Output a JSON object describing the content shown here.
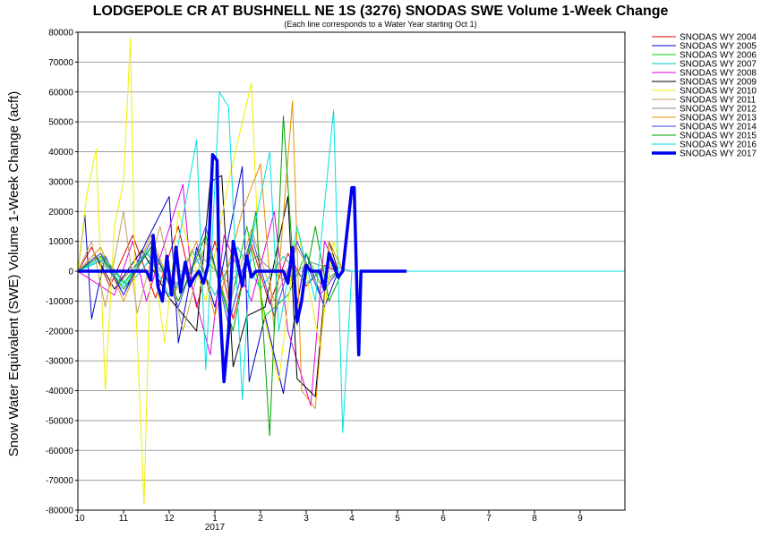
{
  "chart_data": {
    "type": "line",
    "title": "LODGEPOLE CR AT BUSHNELL NE 1S (3276) SNODAS SWE Volume 1-Week Change",
    "subtitle": "(Each line corresponds to a Water Year starting Oct 1)",
    "ylabel": "Snow Water Equivalent (SWE) Volume 1-Week Change (acft)",
    "xlabel": "",
    "x_ticks": [
      "10",
      "11",
      "12",
      "1",
      "2",
      "3",
      "4",
      "5",
      "6",
      "7",
      "8",
      "9"
    ],
    "x_year_label": "2017",
    "ylim": [
      -80000,
      80000
    ],
    "y_ticks": [
      80000,
      70000,
      60000,
      50000,
      40000,
      30000,
      20000,
      10000,
      0,
      -10000,
      -20000,
      -30000,
      -40000,
      -50000,
      -60000,
      -70000,
      -80000
    ],
    "grid": true,
    "legend_position": "right",
    "series": [
      {
        "name": "SNODAS WY 2004",
        "color": "#e00000",
        "values": [
          [
            0.0,
            0
          ],
          [
            0.3,
            8000
          ],
          [
            0.7,
            -5000
          ],
          [
            1.2,
            12000
          ],
          [
            1.7,
            -9000
          ],
          [
            2.2,
            15000
          ],
          [
            2.6,
            -12000
          ],
          [
            3.0,
            10000
          ],
          [
            3.4,
            -16000
          ],
          [
            3.8,
            9000
          ],
          [
            4.2,
            -11000
          ],
          [
            4.6,
            6000
          ],
          [
            5.0,
            -5000
          ],
          [
            5.4,
            2000
          ],
          [
            5.7,
            0
          ]
        ]
      },
      {
        "name": "SNODAS WY 2005",
        "color": "#0000cc",
        "values": [
          [
            0.0,
            0
          ],
          [
            0.15,
            19000
          ],
          [
            0.3,
            -16000
          ],
          [
            0.6,
            5000
          ],
          [
            1.0,
            -8000
          ],
          [
            1.5,
            10000
          ],
          [
            2.0,
            25000
          ],
          [
            2.2,
            -24000
          ],
          [
            2.6,
            8000
          ],
          [
            3.0,
            -12000
          ],
          [
            3.6,
            35000
          ],
          [
            3.75,
            -37000
          ],
          [
            4.1,
            -15000
          ],
          [
            4.5,
            -41000
          ],
          [
            4.7,
            -20000
          ],
          [
            5.0,
            6000
          ],
          [
            5.4,
            -12000
          ],
          [
            5.7,
            0
          ]
        ]
      },
      {
        "name": "SNODAS WY 2006",
        "color": "#00c800",
        "values": [
          [
            0.0,
            0
          ],
          [
            0.5,
            6000
          ],
          [
            1.0,
            -4000
          ],
          [
            1.6,
            8000
          ],
          [
            2.2,
            -10000
          ],
          [
            2.8,
            12000
          ],
          [
            3.3,
            -14000
          ],
          [
            3.7,
            15000
          ],
          [
            4.1,
            -15000
          ],
          [
            4.6,
            -8000
          ],
          [
            5.0,
            6000
          ],
          [
            5.3,
            -4000
          ],
          [
            5.7,
            0
          ]
        ]
      },
      {
        "name": "SNODAS WY 2007",
        "color": "#00c8c8",
        "values": [
          [
            0.0,
            0
          ],
          [
            0.6,
            4000
          ],
          [
            1.1,
            -5000
          ],
          [
            1.7,
            6000
          ],
          [
            2.1,
            -7000
          ],
          [
            2.5,
            7000
          ],
          [
            3.0,
            -8000
          ],
          [
            3.5,
            8000
          ],
          [
            4.0,
            -6000
          ],
          [
            4.5,
            5000
          ],
          [
            5.0,
            -4000
          ],
          [
            5.5,
            2000
          ],
          [
            6.0,
            0
          ]
        ]
      },
      {
        "name": "SNODAS WY 2008",
        "color": "#e000e0",
        "values": [
          [
            0.0,
            0
          ],
          [
            0.8,
            -8000
          ],
          [
            1.2,
            10000
          ],
          [
            1.5,
            -10000
          ],
          [
            2.3,
            29000
          ],
          [
            2.5,
            -5000
          ],
          [
            2.9,
            -28000
          ],
          [
            3.2,
            12000
          ],
          [
            3.8,
            -10000
          ],
          [
            4.3,
            20000
          ],
          [
            4.6,
            -20000
          ],
          [
            5.1,
            -45000
          ],
          [
            5.4,
            10000
          ],
          [
            5.7,
            0
          ]
        ]
      },
      {
        "name": "SNODAS WY 2009",
        "color": "#000000",
        "values": [
          [
            0.0,
            0
          ],
          [
            0.4,
            5000
          ],
          [
            0.8,
            -6000
          ],
          [
            1.4,
            7000
          ],
          [
            2.0,
            -9000
          ],
          [
            2.6,
            -20000
          ],
          [
            2.9,
            30000
          ],
          [
            3.15,
            32000
          ],
          [
            3.4,
            -32000
          ],
          [
            3.7,
            -15000
          ],
          [
            4.1,
            -12000
          ],
          [
            4.6,
            25000
          ],
          [
            4.8,
            -36000
          ],
          [
            5.2,
            -42000
          ],
          [
            5.5,
            10000
          ],
          [
            5.7,
            0
          ]
        ]
      },
      {
        "name": "SNODAS WY 2010",
        "color": "#f0f000",
        "values": [
          [
            0.0,
            0
          ],
          [
            0.2,
            26000
          ],
          [
            0.4,
            41000
          ],
          [
            0.6,
            -40000
          ],
          [
            0.8,
            15000
          ],
          [
            1.0,
            30000
          ],
          [
            1.15,
            78000
          ],
          [
            1.25,
            -5000
          ],
          [
            1.45,
            -78000
          ],
          [
            1.6,
            10000
          ],
          [
            1.9,
            -24000
          ],
          [
            2.2,
            20000
          ],
          [
            2.8,
            -10000
          ],
          [
            3.3,
            30000
          ],
          [
            3.8,
            63000
          ],
          [
            4.0,
            -10000
          ],
          [
            4.4,
            -37000
          ],
          [
            4.8,
            15000
          ],
          [
            5.3,
            -25000
          ],
          [
            5.6,
            10000
          ],
          [
            5.8,
            0
          ]
        ]
      },
      {
        "name": "SNODAS WY 2011",
        "color": "#c0a060",
        "values": [
          [
            0.0,
            0
          ],
          [
            0.3,
            10000
          ],
          [
            0.6,
            -12000
          ],
          [
            1.0,
            20000
          ],
          [
            1.3,
            -14000
          ],
          [
            1.8,
            15000
          ],
          [
            2.3,
            -20000
          ],
          [
            2.8,
            10000
          ],
          [
            3.3,
            -12000
          ],
          [
            3.8,
            14000
          ],
          [
            4.3,
            -10000
          ],
          [
            4.8,
            8000
          ],
          [
            5.3,
            -6000
          ],
          [
            5.7,
            0
          ]
        ]
      },
      {
        "name": "SNODAS WY 2012",
        "color": "#8a8a8a",
        "values": [
          [
            0.0,
            0
          ],
          [
            0.4,
            5000
          ],
          [
            0.9,
            -4000
          ],
          [
            1.5,
            6000
          ],
          [
            2.1,
            -5000
          ],
          [
            2.7,
            5000
          ],
          [
            3.3,
            -4000
          ],
          [
            3.9,
            5000
          ],
          [
            4.5,
            -3000
          ],
          [
            5.1,
            3000
          ],
          [
            5.7,
            0
          ]
        ]
      },
      {
        "name": "SNODAS WY 2013",
        "color": "#e89000",
        "values": [
          [
            0.0,
            0
          ],
          [
            0.5,
            8000
          ],
          [
            1.0,
            -10000
          ],
          [
            1.6,
            12000
          ],
          [
            2.1,
            -8000
          ],
          [
            2.6,
            10000
          ],
          [
            3.0,
            -15000
          ],
          [
            3.6,
            20000
          ],
          [
            4.0,
            36000
          ],
          [
            4.3,
            -20000
          ],
          [
            4.7,
            57000
          ],
          [
            4.9,
            -40000
          ],
          [
            5.2,
            -46000
          ],
          [
            5.5,
            10000
          ],
          [
            5.8,
            0
          ]
        ]
      },
      {
        "name": "SNODAS WY 2014",
        "color": "#4040ff",
        "values": [
          [
            0.0,
            0
          ],
          [
            0.5,
            6000
          ],
          [
            1.0,
            -8000
          ],
          [
            1.6,
            10000
          ],
          [
            2.2,
            -12000
          ],
          [
            2.8,
            15000
          ],
          [
            3.3,
            -18000
          ],
          [
            3.8,
            12000
          ],
          [
            4.3,
            -15000
          ],
          [
            4.8,
            10000
          ],
          [
            5.3,
            -8000
          ],
          [
            5.7,
            0
          ]
        ]
      },
      {
        "name": "SNODAS WY 2015",
        "color": "#00a000",
        "values": [
          [
            0.0,
            0
          ],
          [
            0.5,
            5000
          ],
          [
            1.0,
            -6000
          ],
          [
            1.6,
            8000
          ],
          [
            2.2,
            -10000
          ],
          [
            2.8,
            12000
          ],
          [
            3.4,
            -20000
          ],
          [
            3.9,
            20000
          ],
          [
            4.2,
            -55000
          ],
          [
            4.5,
            52000
          ],
          [
            4.8,
            -18000
          ],
          [
            5.2,
            15000
          ],
          [
            5.5,
            -10000
          ],
          [
            5.8,
            0
          ]
        ]
      },
      {
        "name": "SNODAS WY 2016",
        "color": "#00e0e0",
        "values": [
          [
            0.0,
            0
          ],
          [
            0.5,
            4000
          ],
          [
            1.0,
            -5000
          ],
          [
            1.5,
            7000
          ],
          [
            2.0,
            -8000
          ],
          [
            2.6,
            44000
          ],
          [
            2.8,
            -33000
          ],
          [
            3.1,
            60000
          ],
          [
            3.3,
            55000
          ],
          [
            3.6,
            -43000
          ],
          [
            3.8,
            10000
          ],
          [
            4.2,
            40000
          ],
          [
            4.4,
            -20000
          ],
          [
            4.8,
            15000
          ],
          [
            5.2,
            -10000
          ],
          [
            5.6,
            54000
          ],
          [
            5.8,
            -54000
          ],
          [
            6.0,
            0
          ],
          [
            8.0,
            0
          ],
          [
            12.0,
            0
          ]
        ]
      },
      {
        "name": "SNODAS WY 2017",
        "color": "#0000f0",
        "bold": true,
        "values": [
          [
            0.0,
            0
          ],
          [
            1.5,
            0
          ],
          [
            1.6,
            -3000
          ],
          [
            1.65,
            12000
          ],
          [
            1.75,
            -5000
          ],
          [
            1.85,
            -10000
          ],
          [
            1.95,
            5000
          ],
          [
            2.05,
            -8000
          ],
          [
            2.15,
            8000
          ],
          [
            2.25,
            -7000
          ],
          [
            2.35,
            3000
          ],
          [
            2.45,
            -5000
          ],
          [
            2.55,
            -2000
          ],
          [
            2.65,
            0
          ],
          [
            2.75,
            -4000
          ],
          [
            2.85,
            2000
          ],
          [
            2.95,
            39000
          ],
          [
            3.05,
            37000
          ],
          [
            3.1,
            -8000
          ],
          [
            3.2,
            -37000
          ],
          [
            3.3,
            -20000
          ],
          [
            3.4,
            10000
          ],
          [
            3.5,
            3000
          ],
          [
            3.6,
            -5000
          ],
          [
            3.7,
            5000
          ],
          [
            3.8,
            -2000
          ],
          [
            3.9,
            0
          ],
          [
            4.5,
            0
          ],
          [
            4.6,
            -4000
          ],
          [
            4.7,
            8000
          ],
          [
            4.8,
            -17000
          ],
          [
            4.9,
            -10000
          ],
          [
            5.0,
            2000
          ],
          [
            5.1,
            0
          ],
          [
            5.3,
            0
          ],
          [
            5.4,
            -6000
          ],
          [
            5.5,
            6000
          ],
          [
            5.6,
            2000
          ],
          [
            5.7,
            -2000
          ],
          [
            5.8,
            0
          ],
          [
            6.0,
            28000
          ],
          [
            6.05,
            28000
          ],
          [
            6.1,
            0
          ],
          [
            6.15,
            -28000
          ],
          [
            6.2,
            0
          ],
          [
            7.2,
            0
          ]
        ]
      }
    ]
  }
}
